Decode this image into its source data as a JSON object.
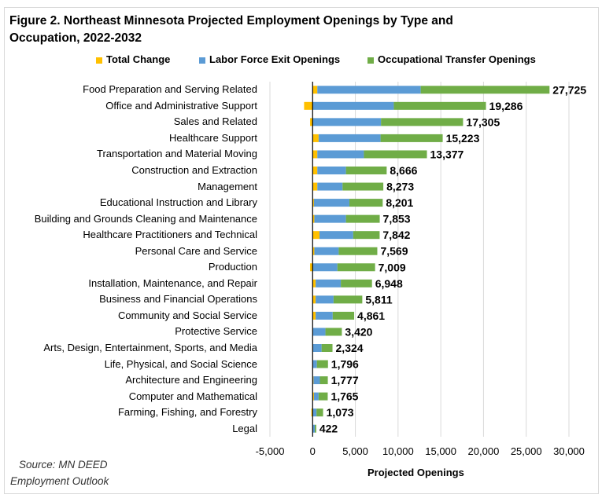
{
  "chart_data": {
    "type": "bar",
    "orientation": "horizontal",
    "stacked": true,
    "title": "Figure 2. Northeast Minnesota Projected Employment Openings by Type and Occupation, 2022-2032",
    "xlabel": "Projected Openings",
    "xlim": [
      -5000,
      30000
    ],
    "xticks": [
      "-5,000",
      "0",
      "5,000",
      "10,000",
      "15,000",
      "20,000",
      "25,000",
      "30,000"
    ],
    "xtick_values": [
      -5000,
      0,
      5000,
      10000,
      15000,
      20000,
      25000,
      30000
    ],
    "grid": true,
    "legend_position": "top",
    "categories": [
      "Food Preparation and Serving Related",
      "Office and Administrative Support",
      "Sales and Related",
      "Healthcare Support",
      "Transportation and Material Moving",
      "Construction and Extraction",
      "Management",
      "Educational Instruction and Library",
      "Building and Grounds Cleaning and Maintenance",
      "Healthcare Practitioners and Technical",
      "Personal Care and Service",
      "Production",
      "Installation, Maintenance, and Repair",
      "Business and Financial Operations",
      "Community and Social Service",
      "Protective Service",
      "Arts, Design, Entertainment, Sports, and Media",
      "Life, Physical, and Social Science",
      "Architecture and Engineering",
      "Computer and Mathematical",
      "Farming, Fishing, and Forestry",
      "Legal"
    ],
    "series": [
      {
        "name": "Total Change",
        "color": "#FFC000",
        "values": [
          550,
          -1000,
          -300,
          700,
          550,
          550,
          550,
          150,
          200,
          800,
          200,
          -300,
          350,
          350,
          350,
          0,
          0,
          0,
          100,
          150,
          -150,
          0
        ]
      },
      {
        "name": "Labor Force Exit Openings",
        "color": "#5B9BD5",
        "values": [
          12100,
          9500,
          8000,
          7250,
          5450,
          3350,
          2950,
          4150,
          3700,
          3950,
          2850,
          2900,
          2950,
          2100,
          2000,
          1500,
          1050,
          500,
          750,
          550,
          450,
          250
        ]
      },
      {
        "name": "Occupational Transfer Openings",
        "color": "#70AD47",
        "values": [
          15075,
          10786,
          9605,
          7273,
          7377,
          4766,
          4773,
          3901,
          3953,
          3092,
          4519,
          4409,
          3648,
          3361,
          2511,
          1920,
          1274,
          1296,
          927,
          1065,
          773,
          172
        ]
      }
    ],
    "data_labels": [
      "27,725",
      "19,286",
      "17,305",
      "15,223",
      "13,377",
      "8,666",
      "8,273",
      "8,201",
      "7,853",
      "7,842",
      "7,569",
      "7,009",
      "6,948",
      "5,811",
      "4,861",
      "3,420",
      "2,324",
      "1,796",
      "1,777",
      "1,765",
      "1,073",
      "422"
    ]
  },
  "source": {
    "line1": "Source: MN DEED",
    "line2": "Employment Outlook"
  }
}
